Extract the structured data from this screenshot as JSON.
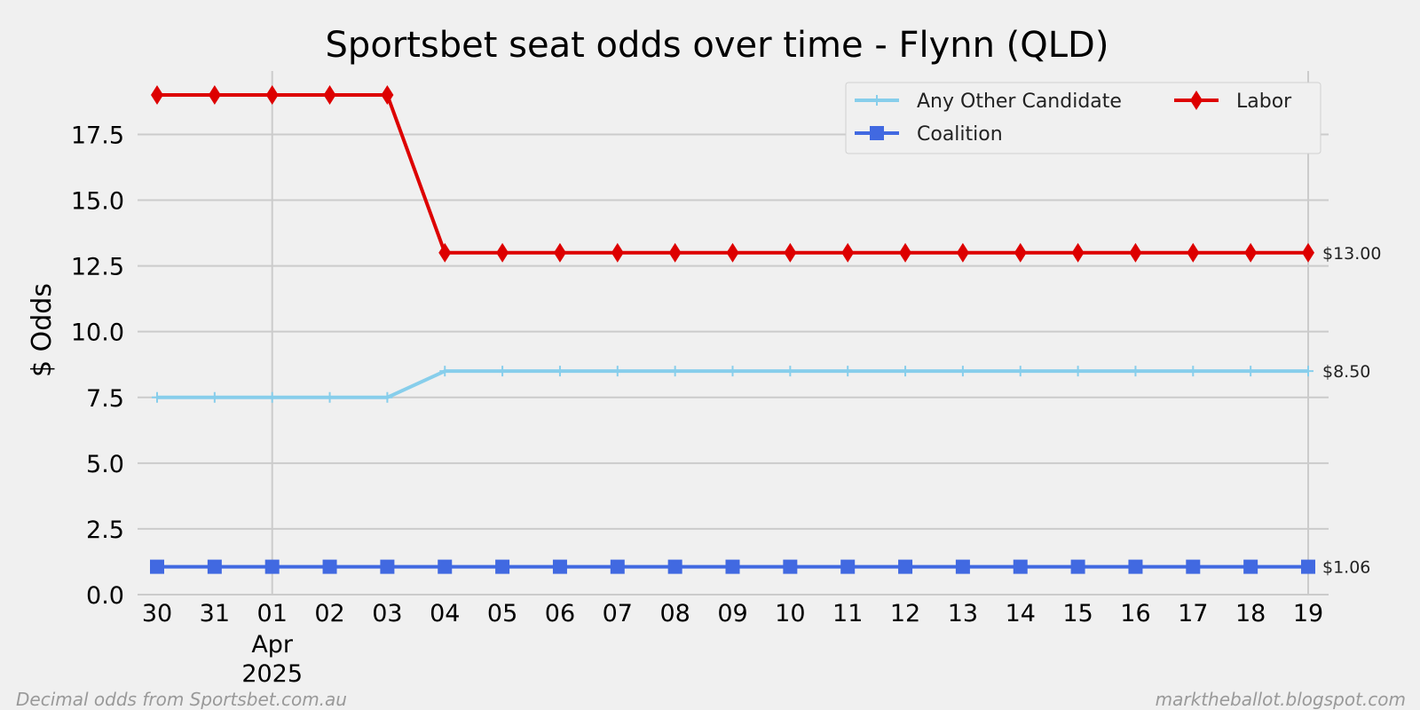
{
  "chart_data": {
    "type": "line",
    "title": "Sportsbet seat odds over time - Flynn (QLD)",
    "xlabel": "",
    "ylabel": "$ Odds",
    "x": [
      "2025-03-30",
      "2025-03-31",
      "2025-04-01",
      "2025-04-02",
      "2025-04-03",
      "2025-04-04",
      "2025-04-05",
      "2025-04-06",
      "2025-04-07",
      "2025-04-08",
      "2025-04-09",
      "2025-04-10",
      "2025-04-11",
      "2025-04-12",
      "2025-04-13",
      "2025-04-14",
      "2025-04-15",
      "2025-04-16",
      "2025-04-17",
      "2025-04-18",
      "2025-04-19"
    ],
    "x_tick_labels": [
      "30",
      "31",
      "01",
      "02",
      "03",
      "04",
      "05",
      "06",
      "07",
      "08",
      "09",
      "10",
      "11",
      "12",
      "13",
      "14",
      "15",
      "16",
      "17",
      "18",
      "19"
    ],
    "x_tick_sublabel": {
      "month": "Apr",
      "year": "2025"
    },
    "ylim": [
      0,
      20
    ],
    "y_ticks": [
      "0.0",
      "2.5",
      "5.0",
      "7.5",
      "10.0",
      "12.5",
      "15.0",
      "17.5"
    ],
    "grid": true,
    "legend_position": "top-right",
    "series": [
      {
        "name": "Any Other Candidate",
        "color": "#87ceeb",
        "marker": "plus",
        "values": [
          7.5,
          7.5,
          7.5,
          7.5,
          7.5,
          8.5,
          8.5,
          8.5,
          8.5,
          8.5,
          8.5,
          8.5,
          8.5,
          8.5,
          8.5,
          8.5,
          8.5,
          8.5,
          8.5,
          8.5,
          8.5
        ],
        "end_label": "$8.50"
      },
      {
        "name": "Coalition",
        "color": "#4169e1",
        "marker": "square",
        "values": [
          1.06,
          1.06,
          1.06,
          1.06,
          1.06,
          1.06,
          1.06,
          1.06,
          1.06,
          1.06,
          1.06,
          1.06,
          1.06,
          1.06,
          1.06,
          1.06,
          1.06,
          1.06,
          1.06,
          1.06,
          1.06
        ],
        "end_label": "$1.06"
      },
      {
        "name": "Labor",
        "color": "#dd0000",
        "marker": "diamond",
        "values": [
          19,
          19,
          19,
          19,
          19,
          13,
          13,
          13,
          13,
          13,
          13,
          13,
          13,
          13,
          13,
          13,
          13,
          13,
          13,
          13,
          13
        ],
        "end_label": "$13.00"
      }
    ],
    "legend_order": [
      0,
      2,
      1
    ]
  },
  "footer": {
    "left": "Decimal odds from Sportsbet.com.au",
    "right": "marktheballot.blogspot.com"
  }
}
